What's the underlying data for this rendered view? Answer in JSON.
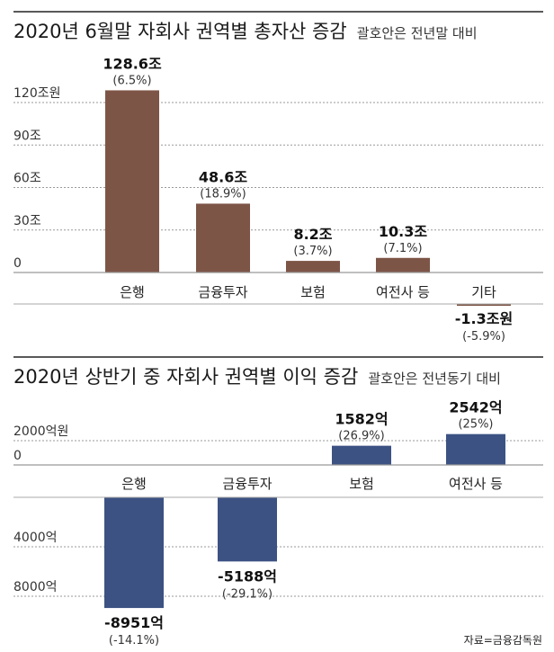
{
  "chart_data": [
    {
      "type": "bar",
      "title": "2020년 6월말 자회사 권역별 총자산 증감",
      "subtitle": "괄호안은 전년말 대비",
      "categories": [
        "은행",
        "금융투자",
        "보험",
        "여전사 등",
        "기타"
      ],
      "values": [
        128.6,
        48.6,
        8.2,
        10.3,
        -1.3
      ],
      "value_labels": [
        "128.6조",
        "48.6조",
        "8.2조",
        "10.3조",
        "-1.3조원"
      ],
      "pct_labels": [
        "(6.5%)",
        "(18.9%)",
        "(3.7%)",
        "(7.1%)",
        "(-5.9%)"
      ],
      "ylabel": "조원",
      "yticks": [
        0,
        30,
        60,
        90,
        120
      ],
      "ytick_labels": [
        "0",
        "30조",
        "60조",
        "90조",
        "120조원"
      ],
      "ylim": [
        -5,
        135
      ],
      "grid": true,
      "color": "#7d5547"
    },
    {
      "type": "bar",
      "title": "2020년 상반기 중 자회사 권역별 이익 증감",
      "subtitle": "괄호안은 전년동기 대비",
      "categories": [
        "은행",
        "금융투자",
        "보험",
        "여전사 등"
      ],
      "values": [
        -8951,
        -5188,
        1582,
        2542
      ],
      "value_labels": [
        "-8951억",
        "-5188억",
        "1582억",
        "2542억"
      ],
      "pct_labels": [
        "(-14.1%)",
        "(-29.1%)",
        "(26.9%)",
        "(25%)"
      ],
      "ylabel": "억원",
      "yticks_positive": [
        0,
        2000
      ],
      "ytick_labels_positive": [
        "0",
        "2000억원"
      ],
      "yticks_negative": [
        4000,
        8000
      ],
      "ytick_labels_negative": [
        "4000억",
        "8000억"
      ],
      "grid": true,
      "color": "#3c5283"
    }
  ],
  "source": "자료=금융감독원"
}
